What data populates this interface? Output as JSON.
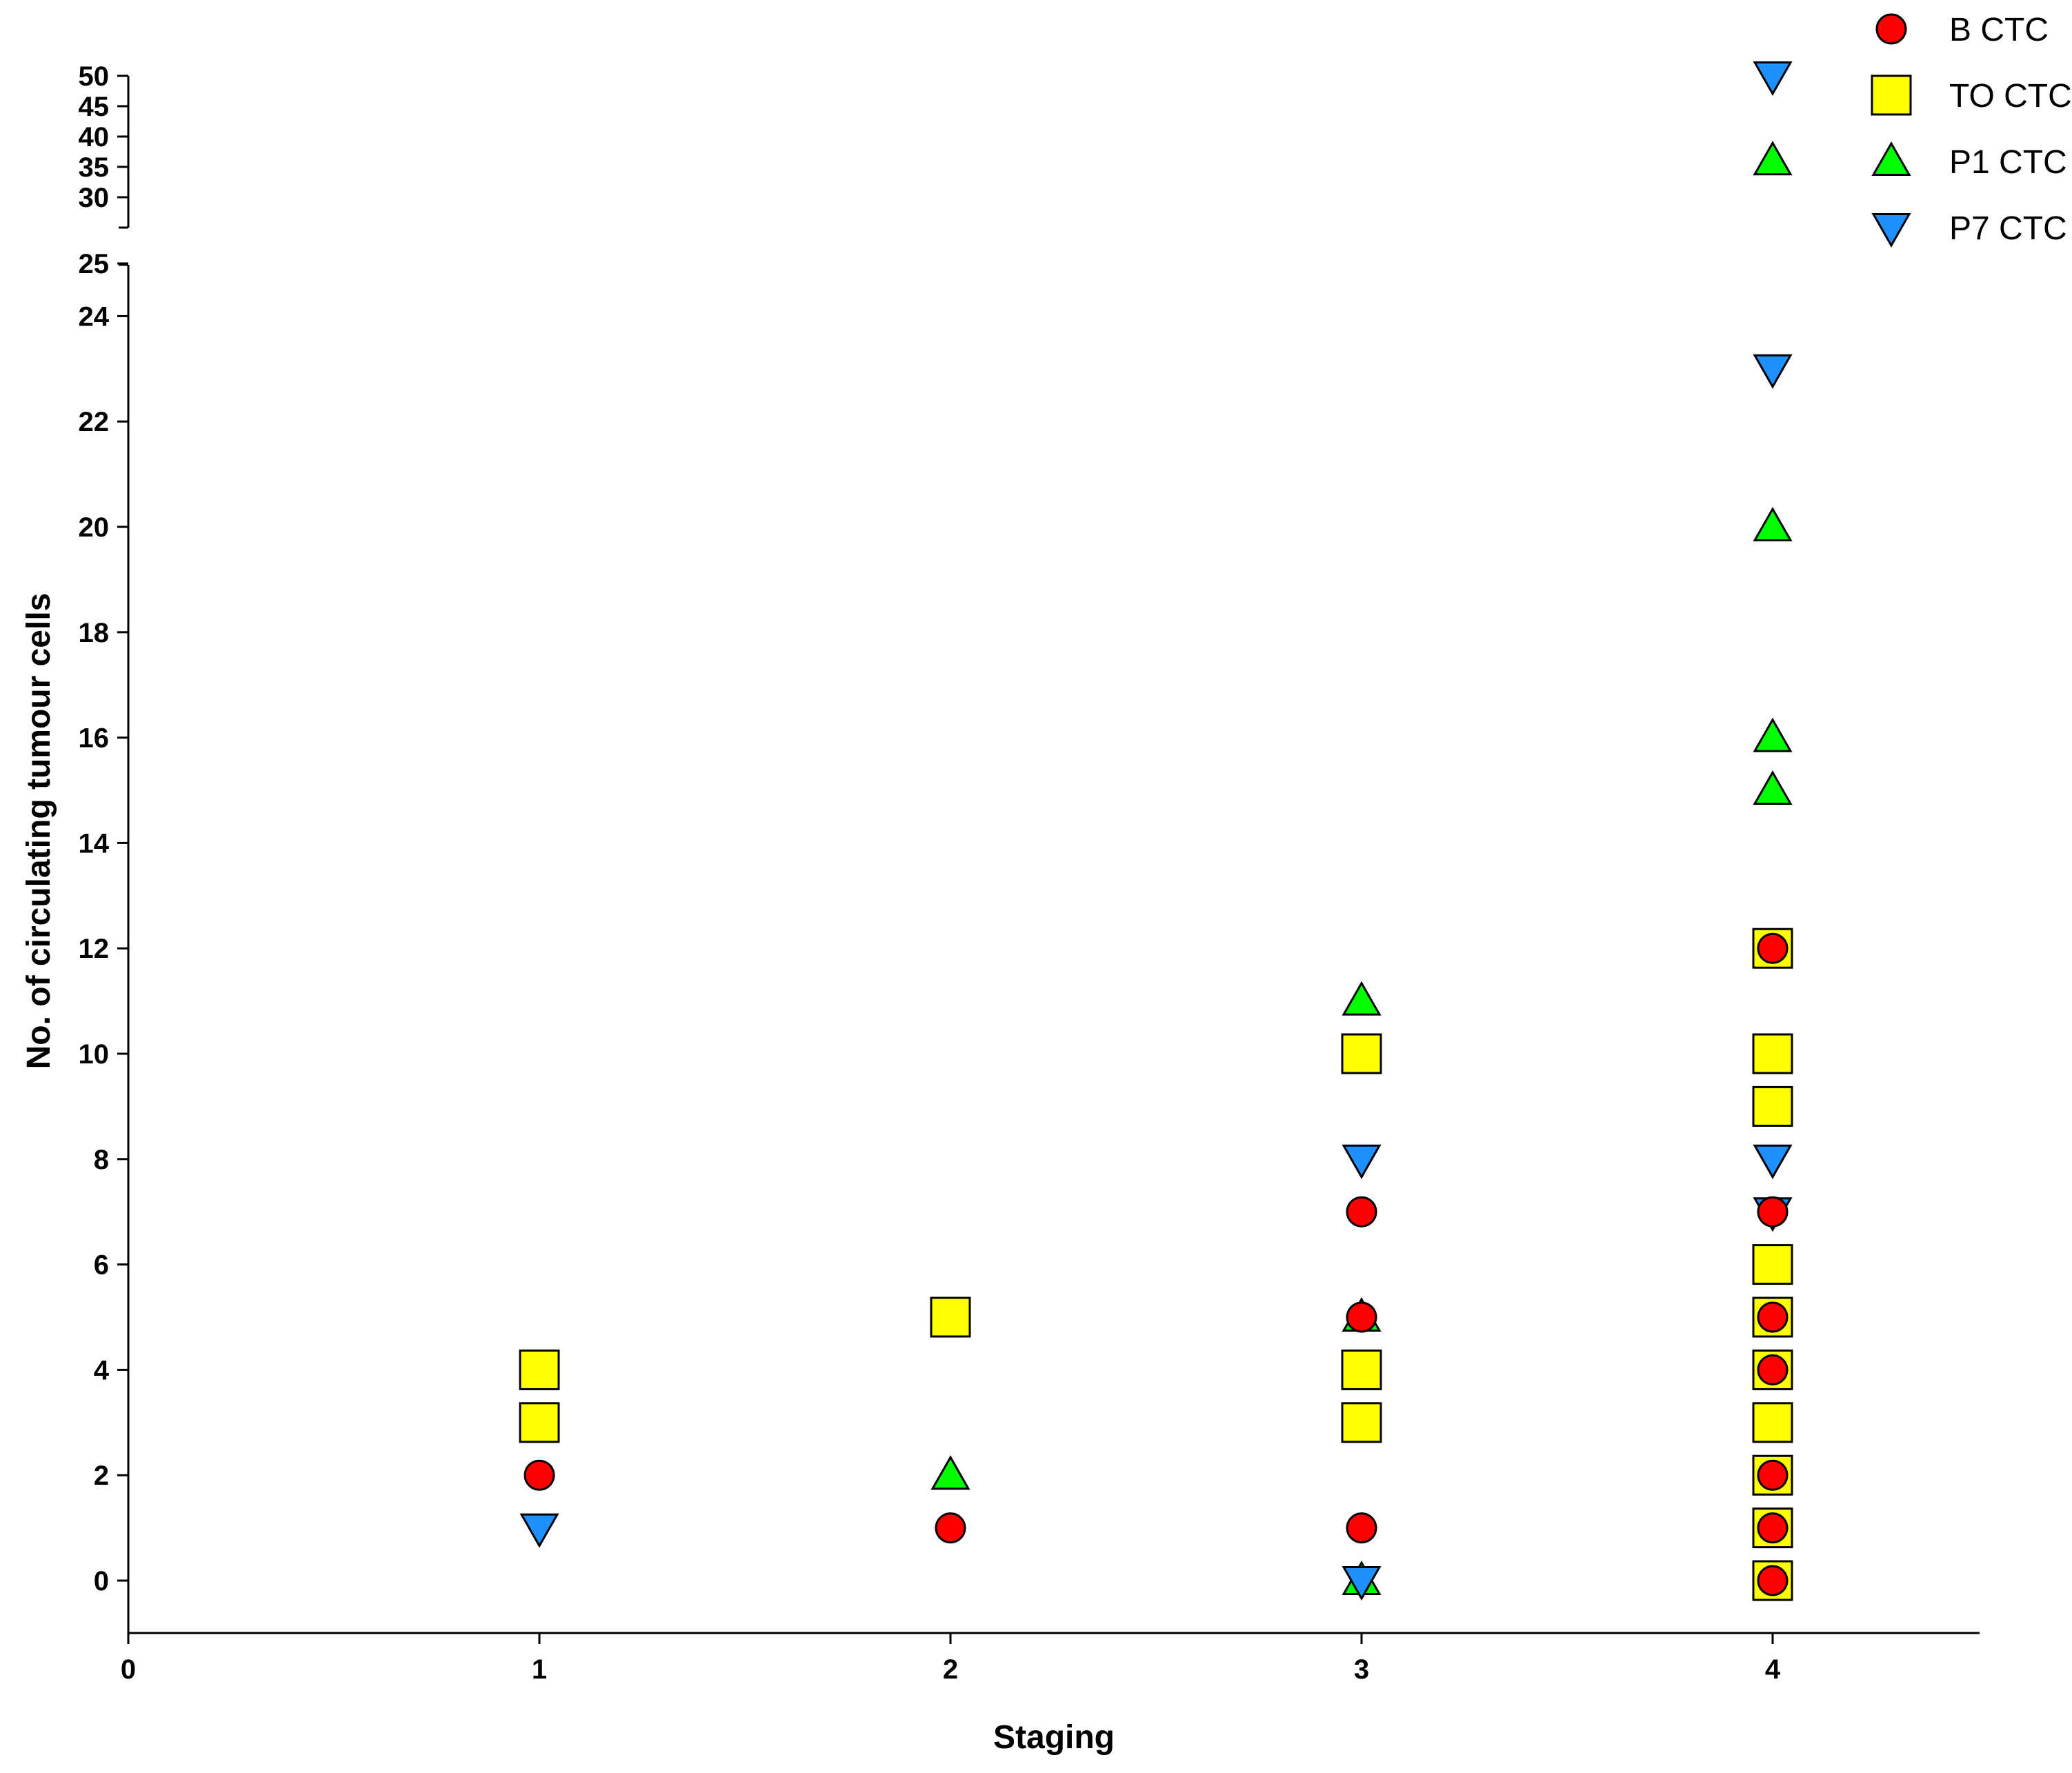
{
  "chart_data": {
    "type": "scatter",
    "title": "",
    "xlabel": "Staging",
    "ylabel": "No. of circulating tumour cells",
    "xlim": [
      0,
      4.5
    ],
    "x_ticks": [
      "0",
      "1",
      "2",
      "3",
      "4"
    ],
    "ylim_lower": [
      -1,
      25
    ],
    "ylim_upper": [
      25,
      50
    ],
    "y_ticks_lower": [
      "0",
      "2",
      "4",
      "6",
      "8",
      "10",
      "12",
      "14",
      "16",
      "18",
      "20",
      "22",
      "24"
    ],
    "y_ticks_upper": [
      "25",
      "30",
      "35",
      "40",
      "45",
      "50"
    ],
    "axis_break": true,
    "legend_position": "top-right",
    "series": [
      {
        "name": "B CTC",
        "marker": "circle",
        "color": "#ff0000",
        "points": [
          [
            1,
            2
          ],
          [
            2,
            1
          ],
          [
            3,
            7
          ],
          [
            3,
            5
          ],
          [
            3,
            1
          ],
          [
            4,
            12
          ],
          [
            4,
            7
          ],
          [
            4,
            5
          ],
          [
            4,
            4
          ],
          [
            4,
            2
          ],
          [
            4,
            1
          ],
          [
            4,
            0
          ]
        ]
      },
      {
        "name": "TO CTC",
        "marker": "square",
        "color": "#ffff00",
        "points": [
          [
            1,
            4
          ],
          [
            1,
            3
          ],
          [
            2,
            5
          ],
          [
            3,
            10
          ],
          [
            3,
            4
          ],
          [
            3,
            3
          ],
          [
            4,
            12
          ],
          [
            4,
            10
          ],
          [
            4,
            9
          ],
          [
            4,
            6
          ],
          [
            4,
            5
          ],
          [
            4,
            4
          ],
          [
            4,
            3
          ],
          [
            4,
            2
          ],
          [
            4,
            1
          ],
          [
            4,
            0
          ]
        ]
      },
      {
        "name": "P1 CTC",
        "marker": "triangle-up",
        "color": "#00ff00",
        "points": [
          [
            2,
            2
          ],
          [
            3,
            11
          ],
          [
            3,
            5
          ],
          [
            3,
            0
          ],
          [
            4,
            36
          ],
          [
            4,
            20
          ],
          [
            4,
            16
          ],
          [
            4,
            15
          ]
        ]
      },
      {
        "name": "P7 CTC",
        "marker": "triangle-down",
        "color": "#1e90ff",
        "points": [
          [
            1,
            1
          ],
          [
            3,
            8
          ],
          [
            3,
            0
          ],
          [
            4,
            50
          ],
          [
            4,
            23
          ],
          [
            4,
            8
          ],
          [
            4,
            7
          ]
        ]
      }
    ]
  }
}
